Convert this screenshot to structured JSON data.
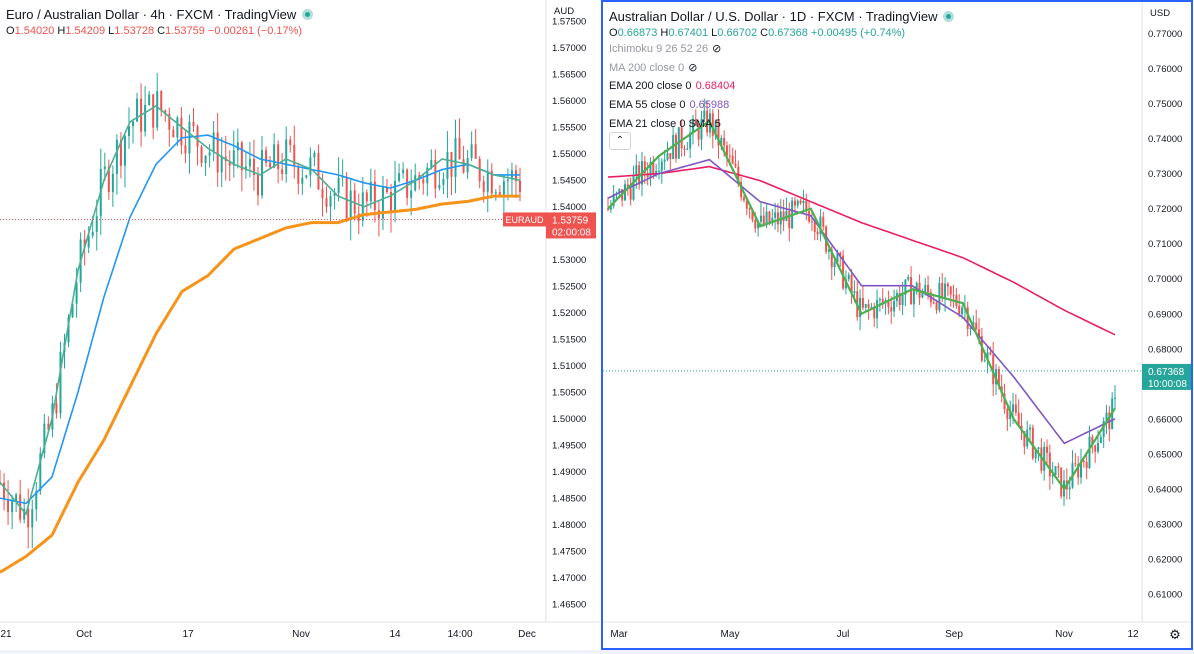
{
  "left": {
    "title": "Euro / Australian Dollar · 4h · FXCM · TradingView",
    "ohlc": {
      "o": "1.54020",
      "h": "1.54209",
      "l": "1.53728",
      "c": "1.53759",
      "chg": "−0.00261 (−0.17%)"
    },
    "currency": "AUD",
    "symbol_tag": "EURAUD",
    "price_tag": "1.53759",
    "countdown": "02:00:08",
    "y_ticks": [
      "1.57500",
      "1.57000",
      "1.56500",
      "1.56000",
      "1.55500",
      "1.55000",
      "1.54500",
      "1.54000",
      "1.53500",
      "1.53000",
      "1.52500",
      "1.52000",
      "1.51500",
      "1.51000",
      "1.50500",
      "1.50000",
      "1.49500",
      "1.49000",
      "1.48500",
      "1.48000",
      "1.47500",
      "1.47000",
      "1.46500"
    ],
    "x_ticks": [
      "21",
      "Oct",
      "17",
      "Nov",
      "14",
      "14:00",
      "Dec"
    ]
  },
  "right": {
    "title": "Australian Dollar / U.S. Dollar · 1D · FXCM · TradingView",
    "ohlc": {
      "o": "0.66873",
      "h": "0.67401",
      "l": "0.66702",
      "c": "0.67368",
      "chg": "+0.00495 (+0.74%)"
    },
    "currency": "USD",
    "price_tag": "0.67368",
    "countdown": "10:00:08",
    "indicators": [
      {
        "label": "Ichimoku 9 26 52 26",
        "value": "",
        "muted": true
      },
      {
        "label": "MA 200 close 0",
        "value": "",
        "muted": true
      },
      {
        "label": "EMA 200 close 0",
        "value": "0.68404",
        "color": "#e91e63"
      },
      {
        "label": "EMA 55 close 0",
        "value": "0.65988",
        "color": "#7e57c2"
      },
      {
        "label": "EMA 21 close 0 SMA 5",
        "value": "",
        "color": "#131722"
      }
    ],
    "y_ticks": [
      "0.77000",
      "0.76000",
      "0.75000",
      "0.74000",
      "0.73000",
      "0.72000",
      "0.71000",
      "0.70000",
      "0.69000",
      "0.68000",
      "0.67000",
      "0.66000",
      "0.65000",
      "0.64000",
      "0.63000",
      "0.62000",
      "0.61000"
    ],
    "x_ticks": [
      "Mar",
      "May",
      "Jul",
      "Sep",
      "Nov",
      "12"
    ]
  },
  "chart_data": [
    {
      "type": "line",
      "title": "Euro / Australian Dollar · 4h · FXCM · TradingView",
      "ylim": [
        1.462,
        1.579
      ],
      "series": [
        {
          "name": "",
          "color": "#f7931a",
          "x": [
            0,
            0.05,
            0.1,
            0.15,
            0.2,
            0.25,
            0.3,
            0.35,
            0.4,
            0.45,
            0.5,
            0.55,
            0.6,
            0.65,
            0.7,
            0.75,
            0.8,
            0.85,
            0.9,
            0.95,
            1
          ],
          "values": [
            1.471,
            1.474,
            1.478,
            1.488,
            1.496,
            1.506,
            1.516,
            1.524,
            1.527,
            1.532,
            1.534,
            1.536,
            1.537,
            1.537,
            1.5385,
            1.539,
            1.5395,
            1.5405,
            1.541,
            1.542,
            1.542
          ]
        },
        {
          "name": "",
          "color": "#2196f3",
          "x": [
            0,
            0.05,
            0.1,
            0.15,
            0.2,
            0.25,
            0.3,
            0.35,
            0.4,
            0.45,
            0.5,
            0.55,
            0.6,
            0.65,
            0.7,
            0.75,
            0.8,
            0.85,
            0.9,
            0.95,
            1
          ],
          "values": [
            1.485,
            1.484,
            1.489,
            1.505,
            1.523,
            1.538,
            1.548,
            1.553,
            1.5535,
            1.5515,
            1.549,
            1.548,
            1.547,
            1.546,
            1.5445,
            1.5435,
            1.545,
            1.547,
            1.548,
            1.546,
            1.546
          ]
        },
        {
          "name": "",
          "color": "#4caf93",
          "x": [
            0,
            0.05,
            0.1,
            0.15,
            0.2,
            0.25,
            0.3,
            0.35,
            0.4,
            0.45,
            0.5,
            0.55,
            0.6,
            0.65,
            0.7,
            0.75,
            0.8,
            0.85,
            0.9,
            0.95,
            1
          ],
          "values": [
            1.488,
            1.482,
            1.5,
            1.528,
            1.545,
            1.556,
            1.559,
            1.555,
            1.551,
            1.548,
            1.546,
            1.549,
            1.547,
            1.542,
            1.54,
            1.542,
            1.545,
            1.549,
            1.548,
            1.546,
            1.545
          ]
        }
      ]
    },
    {
      "type": "line",
      "title": "Australian Dollar / U.S. Dollar · 1D · FXCM · TradingView",
      "ylim": [
        0.602,
        0.779
      ],
      "series": [
        {
          "name": "EMA 200 close 0",
          "color": "#e91e63",
          "x": [
            0,
            0.1,
            0.2,
            0.3,
            0.4,
            0.5,
            0.6,
            0.7,
            0.8,
            0.9,
            1
          ],
          "values": [
            0.729,
            0.73,
            0.732,
            0.728,
            0.722,
            0.716,
            0.711,
            0.706,
            0.699,
            0.691,
            0.684
          ]
        },
        {
          "name": "EMA 55 close 0",
          "color": "#7e57c2",
          "x": [
            0,
            0.1,
            0.2,
            0.3,
            0.4,
            0.5,
            0.6,
            0.7,
            0.8,
            0.9,
            1
          ],
          "values": [
            0.723,
            0.73,
            0.734,
            0.722,
            0.718,
            0.698,
            0.698,
            0.689,
            0.672,
            0.653,
            0.66
          ]
        },
        {
          "name": "EMA 21 close 0 SMA 5",
          "color": "#4caf50",
          "x": [
            0,
            0.1,
            0.2,
            0.3,
            0.4,
            0.5,
            0.6,
            0.7,
            0.8,
            0.9,
            1
          ],
          "values": [
            0.72,
            0.735,
            0.745,
            0.715,
            0.72,
            0.69,
            0.697,
            0.693,
            0.66,
            0.64,
            0.663
          ]
        }
      ]
    }
  ]
}
